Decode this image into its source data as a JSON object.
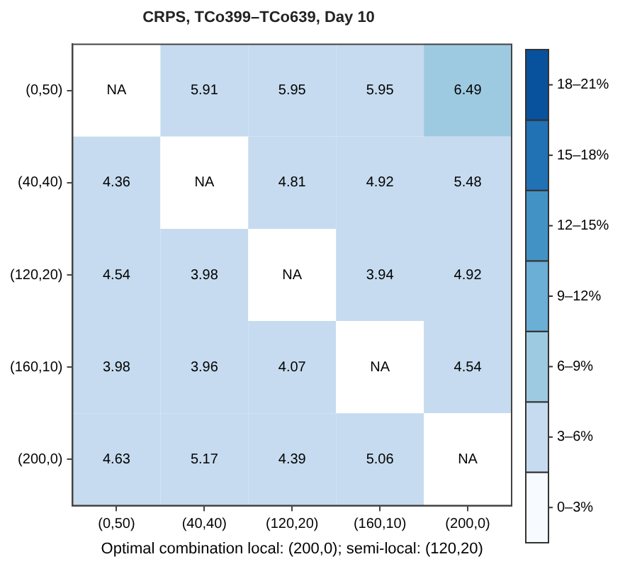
{
  "chart_data": {
    "type": "heatmap",
    "title": "CRPS, TCo399–TCo639, Day 10",
    "xlabel": "Optimal combination local: (200,0); semi-local: (120,20)",
    "categories": [
      "(0,50)",
      "(40,40)",
      "(120,20)",
      "(160,10)",
      "(200,0)"
    ],
    "y_categories": [
      "(0,50)",
      "(40,40)",
      "(120,20)",
      "(160,10)",
      "(200,0)"
    ],
    "cells": [
      [
        null,
        5.91,
        5.95,
        5.95,
        6.49
      ],
      [
        4.36,
        null,
        4.81,
        4.92,
        5.48
      ],
      [
        4.54,
        3.98,
        null,
        3.94,
        4.92
      ],
      [
        3.98,
        3.96,
        4.07,
        null,
        4.54
      ],
      [
        4.63,
        5.17,
        4.39,
        5.06,
        null
      ]
    ],
    "cell_labels": [
      [
        "NA",
        "5.91",
        "5.95",
        "5.95",
        "6.49"
      ],
      [
        "4.36",
        "NA",
        "4.81",
        "4.92",
        "5.48"
      ],
      [
        "4.54",
        "3.98",
        "NA",
        "3.94",
        "4.92"
      ],
      [
        "3.98",
        "3.96",
        "4.07",
        "NA",
        "4.54"
      ],
      [
        "4.63",
        "5.17",
        "4.39",
        "5.06",
        "NA"
      ]
    ],
    "clim": [
      0,
      21
    ],
    "cticks": [
      {
        "value": 1.5,
        "label": "0–3%"
      },
      {
        "value": 4.5,
        "label": "3–6%"
      },
      {
        "value": 7.5,
        "label": "6–9%"
      },
      {
        "value": 10.5,
        "label": "9–12%"
      },
      {
        "value": 13.5,
        "label": "12–15%"
      },
      {
        "value": 16.5,
        "label": "15–18%"
      },
      {
        "value": 19.5,
        "label": "18–21%"
      }
    ]
  }
}
